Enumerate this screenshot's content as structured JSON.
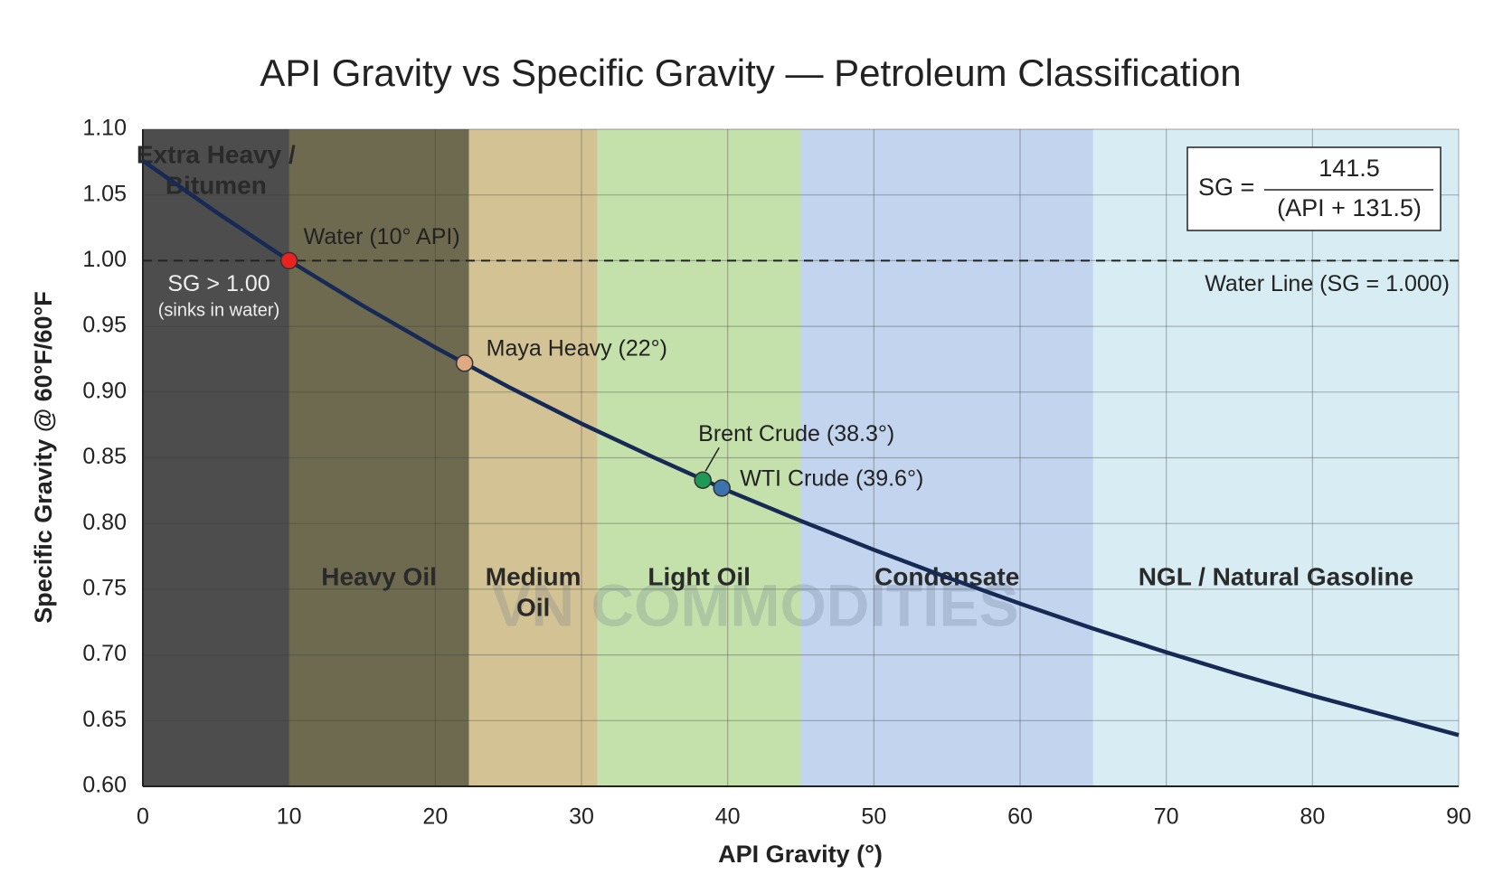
{
  "chart_data": {
    "type": "line",
    "title": "API Gravity vs Specific Gravity — Petroleum Classification",
    "xlabel": "API Gravity (°)",
    "ylabel": "Specific Gravity @ 60°F/60°F",
    "xlim": [
      0,
      90
    ],
    "ylim": [
      0.6,
      1.1
    ],
    "xticks": [
      0,
      10,
      20,
      30,
      40,
      50,
      60,
      70,
      80,
      90
    ],
    "yticks": [
      {
        "value": 0.6,
        "label": "0.60"
      },
      {
        "value": 0.65,
        "label": "0.65"
      },
      {
        "value": 0.7,
        "label": "0.70"
      },
      {
        "value": 0.75,
        "label": "0.75"
      },
      {
        "value": 0.8,
        "label": "0.80"
      },
      {
        "value": 0.85,
        "label": "0.85"
      },
      {
        "value": 0.9,
        "label": "0.90"
      },
      {
        "value": 0.95,
        "label": "0.95"
      },
      {
        "value": 1.0,
        "label": "1.00"
      },
      {
        "value": 1.05,
        "label": "1.05"
      },
      {
        "value": 1.1,
        "label": "1.10"
      }
    ],
    "grid": true,
    "x": [
      0,
      5,
      10,
      15,
      20,
      25,
      30,
      35,
      40,
      45,
      50,
      55,
      60,
      65,
      70,
      75,
      80,
      85,
      90
    ],
    "series": [
      {
        "color": "#172a55",
        "values": [
          1.076,
          1.037,
          1.0,
          0.966,
          0.934,
          0.904,
          0.876,
          0.85,
          0.825,
          0.802,
          0.78,
          0.759,
          0.739,
          0.72,
          0.702,
          0.685,
          0.669,
          0.654,
          0.639
        ]
      }
    ],
    "regions": [
      {
        "label_lines": [
          "Extra Heavy /",
          "Bitumen"
        ],
        "xlim": [
          0,
          10
        ],
        "color": "#4d4d4d"
      },
      {
        "label_lines": [
          "Heavy Oil"
        ],
        "xlim": [
          10,
          22.3
        ],
        "color": "#6e6a4f"
      },
      {
        "label_lines": [
          "Medium",
          "Oil"
        ],
        "xlim": [
          22.3,
          31.1
        ],
        "color": "#d3c394"
      },
      {
        "label_lines": [
          "Light Oil"
        ],
        "xlim": [
          31.1,
          45
        ],
        "color": "#c4e1ab"
      },
      {
        "label_lines": [
          "Condensate"
        ],
        "xlim": [
          45,
          65
        ],
        "color": "#c2d4ee"
      },
      {
        "label_lines": [
          "NGL / Natural Gasoline"
        ],
        "xlim": [
          65,
          90
        ],
        "color": "#d8ecf3"
      }
    ],
    "reference_line": {
      "y": 1.0,
      "label": "Water Line (SG = 1.000)"
    },
    "points": [
      {
        "label": "Water (10° API)",
        "x": 10,
        "y": 1.0,
        "color": "#e8231f"
      },
      {
        "label": "Maya Heavy (22°)",
        "x": 22,
        "y": 0.922,
        "color": "#e0a982"
      },
      {
        "label": "Brent Crude (38.3°)",
        "x": 38.3,
        "y": 0.833,
        "color": "#1f9a55"
      },
      {
        "label": "WTI Crude (39.6°)",
        "x": 39.6,
        "y": 0.827,
        "color": "#3a73ad"
      }
    ],
    "annotations": [
      "SG > 1.00",
      "(sinks in water)"
    ],
    "formula": {
      "lhs": "SG =",
      "numerator": "141.5",
      "denominator": "(API + 131.5)"
    },
    "watermark": "VN COMMODITIES"
  }
}
